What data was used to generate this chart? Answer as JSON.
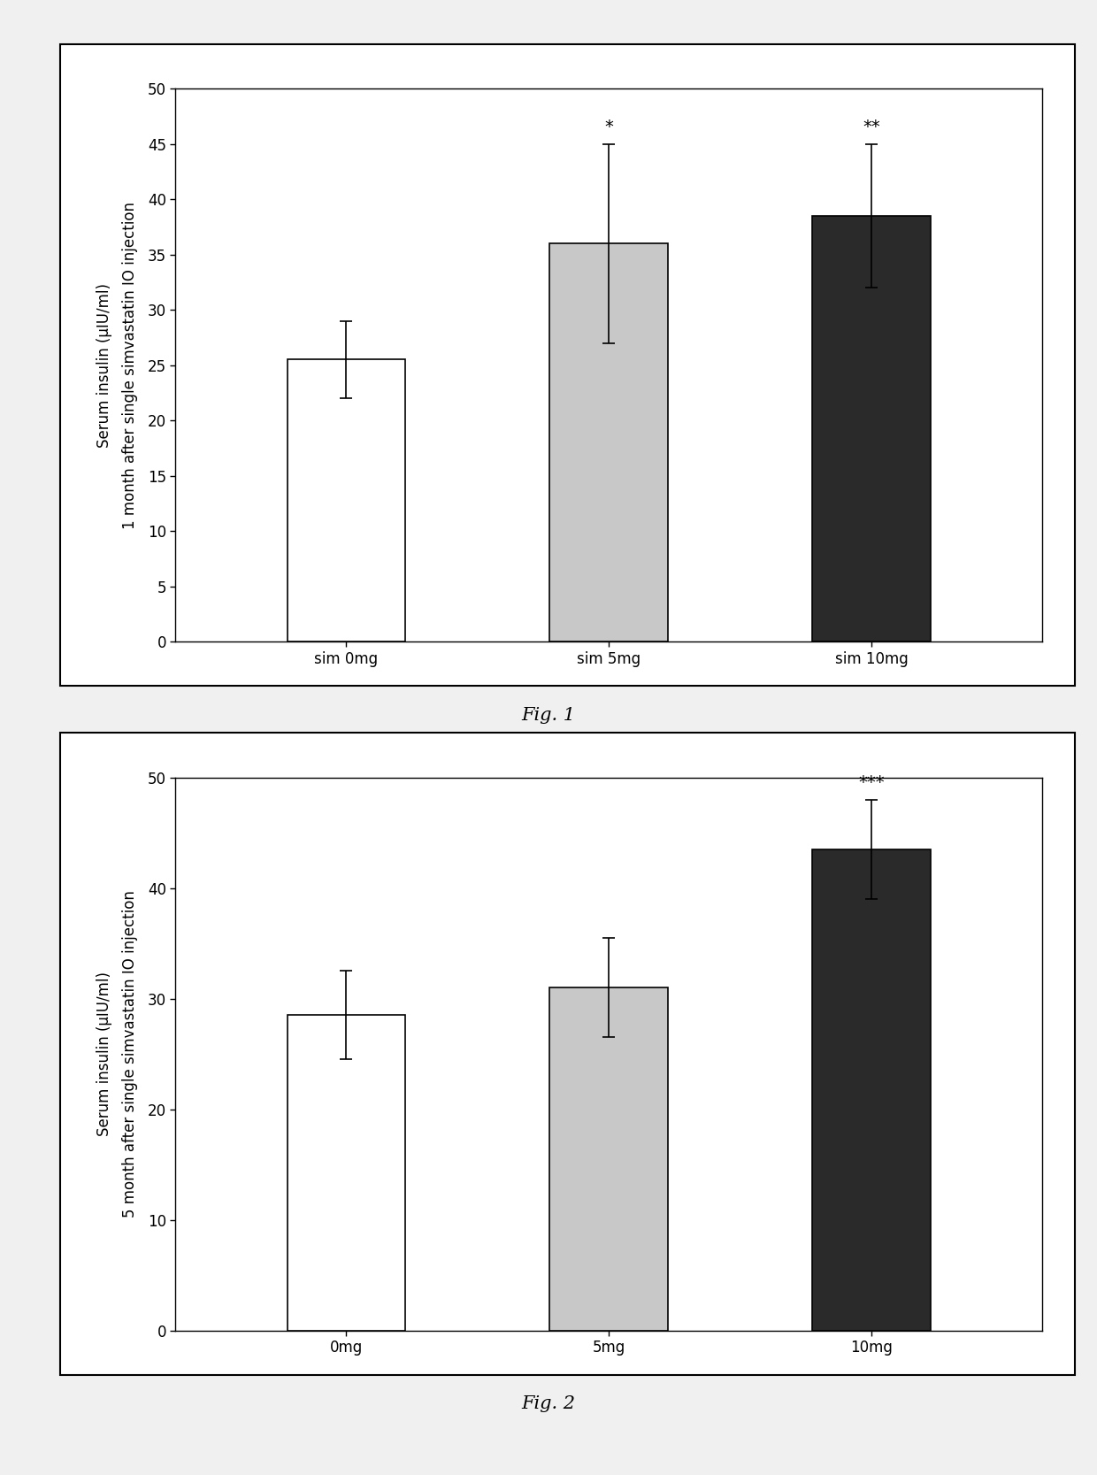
{
  "fig1": {
    "categories": [
      "sim 0mg",
      "sim 5mg",
      "sim 10mg"
    ],
    "values": [
      25.5,
      36.0,
      38.5
    ],
    "errors": [
      3.5,
      9.0,
      6.5
    ],
    "bar_colors": [
      "#ffffff",
      "#c8c8c8",
      "#2a2a2a"
    ],
    "bar_edgecolor": "#000000",
    "significance": [
      "",
      "*",
      "**"
    ],
    "ylabel_line1": "Serum insulin (μIU/ml)",
    "ylabel_line2": "1 month after single simvastatin IO injection",
    "ylim": [
      0,
      50
    ],
    "yticks": [
      0,
      5,
      10,
      15,
      20,
      25,
      30,
      35,
      40,
      45,
      50
    ],
    "caption": "Fig. 1"
  },
  "fig2": {
    "categories": [
      "0mg",
      "5mg",
      "10mg"
    ],
    "values": [
      28.5,
      31.0,
      43.5
    ],
    "errors": [
      4.0,
      4.5,
      4.5
    ],
    "bar_colors": [
      "#ffffff",
      "#c8c8c8",
      "#2a2a2a"
    ],
    "bar_edgecolor": "#000000",
    "significance": [
      "",
      "",
      "***"
    ],
    "ylabel_line1": "Serum insulin (μIU/ml)",
    "ylabel_line2": "5 month after single simvastatin IO injection",
    "ylim": [
      0,
      50
    ],
    "yticks": [
      0,
      10,
      20,
      30,
      40,
      50
    ],
    "caption": "Fig. 2"
  },
  "background_color": "#ffffff",
  "page_background": "#f0f0f0",
  "bar_width": 0.45,
  "capsize": 5,
  "tick_fontsize": 12,
  "label_fontsize": 12,
  "sig_fontsize": 14,
  "caption_fontsize": 15
}
